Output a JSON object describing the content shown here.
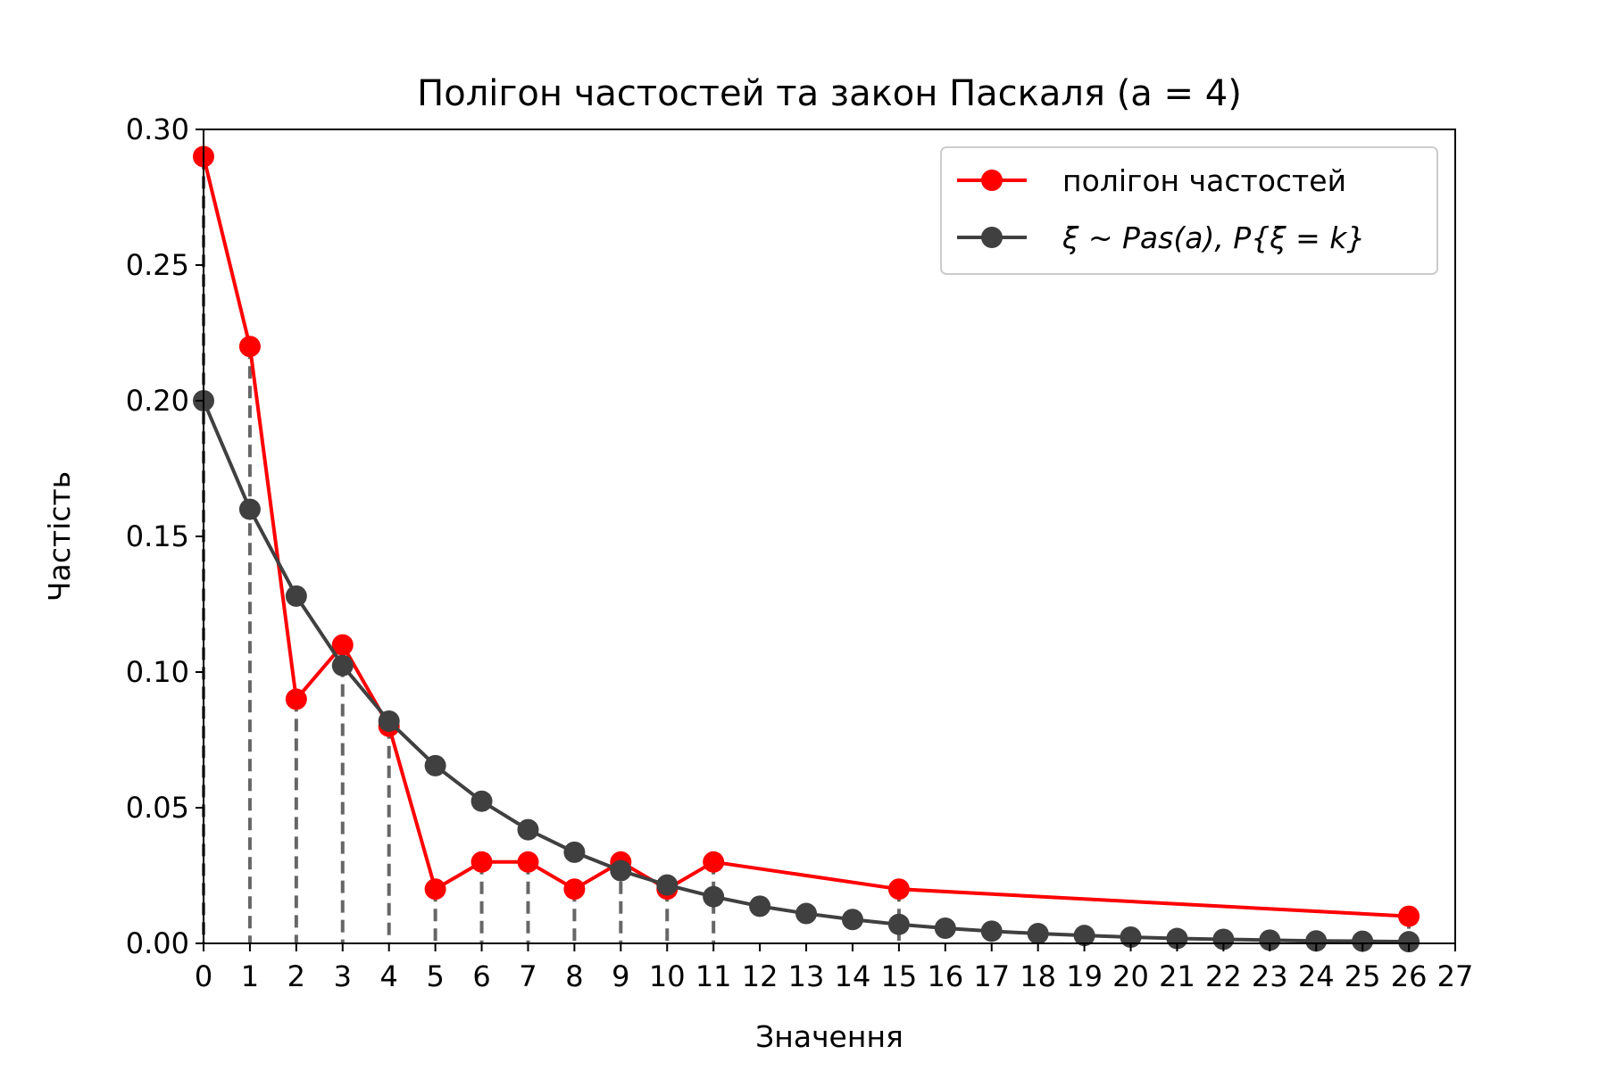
{
  "chart_data": {
    "type": "line",
    "title": "Полігон частостей та закон Паскаля (a = 4)",
    "xlabel": "Значення",
    "ylabel": "Частість",
    "xlim": [
      0,
      27
    ],
    "ylim": [
      0,
      0.3
    ],
    "xticks": [
      "0",
      "1",
      "2",
      "3",
      "4",
      "5",
      "6",
      "7",
      "8",
      "9",
      "10",
      "11",
      "12",
      "13",
      "14",
      "15",
      "16",
      "17",
      "18",
      "19",
      "20",
      "21",
      "22",
      "23",
      "24",
      "25",
      "26",
      "27"
    ],
    "yticks": [
      "0.00",
      "0.05",
      "0.10",
      "0.15",
      "0.20",
      "0.25",
      "0.30"
    ],
    "grid": false,
    "legend_position": "top-right",
    "series": [
      {
        "name": "полігон частостей",
        "color": "#ff0000",
        "x": [
          0,
          1,
          2,
          3,
          4,
          5,
          6,
          7,
          8,
          9,
          10,
          11,
          15,
          26
        ],
        "y": [
          0.29,
          0.22,
          0.09,
          0.11,
          0.08,
          0.02,
          0.03,
          0.03,
          0.02,
          0.03,
          0.02,
          0.03,
          0.02,
          0.01
        ]
      },
      {
        "name": "ξ ~ Pas(a), P{ξ = k}",
        "color": "#404040",
        "x": [
          0,
          1,
          2,
          3,
          4,
          5,
          6,
          7,
          8,
          9,
          10,
          11,
          12,
          13,
          14,
          15,
          16,
          17,
          18,
          19,
          20,
          21,
          22,
          23,
          24,
          25,
          26
        ],
        "y": [
          0.2,
          0.16,
          0.128,
          0.1024,
          0.0819,
          0.0655,
          0.0524,
          0.0419,
          0.0336,
          0.0268,
          0.0215,
          0.0172,
          0.0137,
          0.011,
          0.0088,
          0.007,
          0.0056,
          0.0045,
          0.0036,
          0.0029,
          0.0023,
          0.0018,
          0.0015,
          0.0012,
          0.0009,
          0.0008,
          0.0006
        ]
      }
    ],
    "stems": {
      "color": "#666666",
      "style": "dashed",
      "x": [
        0,
        1,
        2,
        3,
        4,
        5,
        6,
        7,
        8,
        9,
        10,
        11,
        15,
        26
      ]
    }
  }
}
